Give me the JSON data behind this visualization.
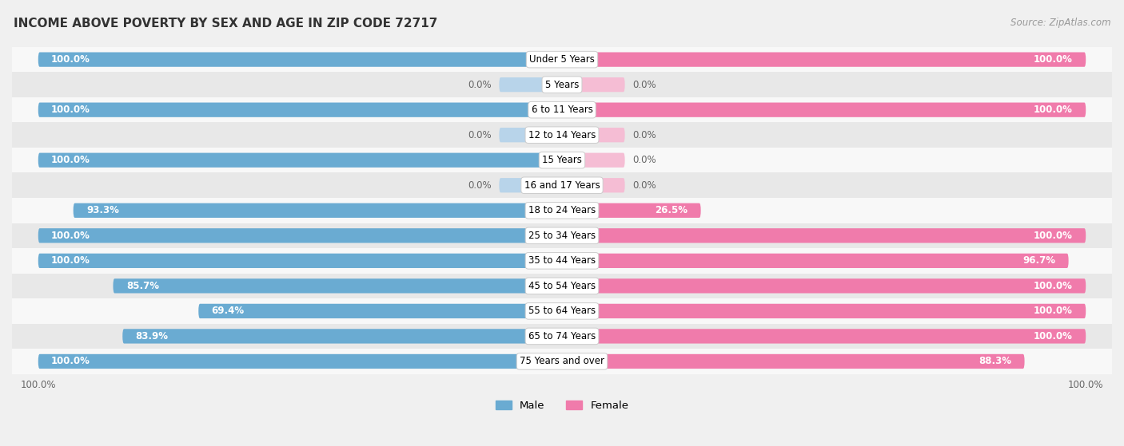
{
  "title": "INCOME ABOVE POVERTY BY SEX AND AGE IN ZIP CODE 72717",
  "source": "Source: ZipAtlas.com",
  "categories": [
    "Under 5 Years",
    "5 Years",
    "6 to 11 Years",
    "12 to 14 Years",
    "15 Years",
    "16 and 17 Years",
    "18 to 24 Years",
    "25 to 34 Years",
    "35 to 44 Years",
    "45 to 54 Years",
    "55 to 64 Years",
    "65 to 74 Years",
    "75 Years and over"
  ],
  "male_values": [
    100.0,
    0.0,
    100.0,
    0.0,
    100.0,
    0.0,
    93.3,
    100.0,
    100.0,
    85.7,
    69.4,
    83.9,
    100.0
  ],
  "female_values": [
    100.0,
    0.0,
    100.0,
    0.0,
    0.0,
    0.0,
    26.5,
    100.0,
    96.7,
    100.0,
    100.0,
    100.0,
    88.3
  ],
  "male_color": "#6aabd2",
  "female_color": "#f07bab",
  "male_color_light": "#b8d4ea",
  "female_color_light": "#f5bdd4",
  "bar_height": 0.58,
  "background_color": "#f0f0f0",
  "row_color_odd": "#f8f8f8",
  "row_color_even": "#e8e8e8",
  "max_value": 100.0,
  "stub_size": 12.0,
  "title_fontsize": 11,
  "label_fontsize": 8.5,
  "cat_fontsize": 8.5,
  "source_fontsize": 8.5
}
